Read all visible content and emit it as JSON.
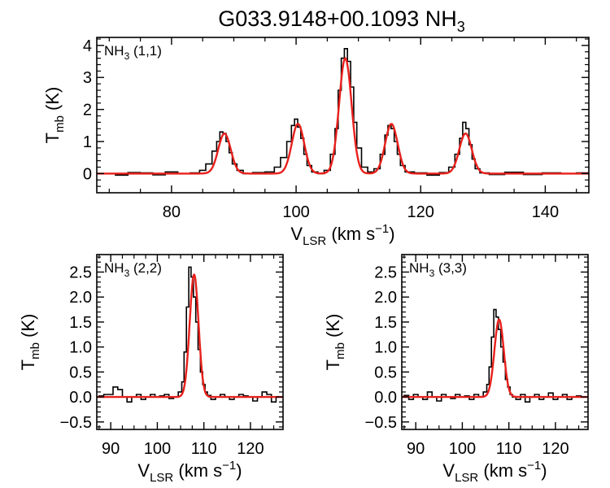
{
  "figure": {
    "title": "G033.9148+00.1093 NH",
    "title_sub": "3"
  },
  "chart_data": [
    {
      "type": "line",
      "panel_label": {
        "main": "NH",
        "sub": "3",
        "rest": " (1,1)"
      },
      "xlabel": {
        "main": "V",
        "sub": "LSR",
        "rest": " (km s",
        "sup": "−1",
        "end": ")"
      },
      "ylabel": {
        "main": "T",
        "sub": "mb",
        "rest": " (K)"
      },
      "xlim": [
        68,
        147
      ],
      "ylim": [
        -0.6,
        4.25
      ],
      "xticks": [
        80,
        100,
        120,
        140
      ],
      "xtick_labels": [
        "80",
        "100",
        "120",
        "140"
      ],
      "yticks": [
        0,
        1,
        2,
        3,
        4
      ],
      "ytick_labels": [
        "0",
        "1",
        "2",
        "3",
        "4"
      ],
      "series": [
        {
          "role": "spectrum",
          "style": "step",
          "color": "#000000",
          "x": [
            70,
            72,
            74,
            76,
            78,
            80,
            82,
            84,
            85,
            86,
            87,
            87.5,
            88,
            88.5,
            89,
            89.5,
            90,
            91,
            92,
            94,
            96,
            97,
            98,
            99,
            99.5,
            100,
            100.5,
            101,
            101.5,
            102,
            103,
            104,
            105,
            106,
            106.5,
            107,
            107.5,
            108,
            108.5,
            109,
            109.5,
            110,
            111,
            112,
            113,
            114,
            114.5,
            115,
            115.5,
            116,
            116.5,
            117,
            118,
            120,
            122,
            124,
            125,
            126,
            126.5,
            127,
            127.5,
            128,
            128.5,
            129,
            130,
            132,
            135,
            138,
            141,
            144,
            146
          ],
          "y": [
            0.0,
            -0.05,
            0.03,
            0.02,
            -0.04,
            0.05,
            0.0,
            0.02,
            0.1,
            0.3,
            0.7,
            1.0,
            1.3,
            1.25,
            1.0,
            0.65,
            0.3,
            0.1,
            0.0,
            0.03,
            0.05,
            0.2,
            0.5,
            1.0,
            1.5,
            1.7,
            1.45,
            1.1,
            0.6,
            0.25,
            0.05,
            0.0,
            0.1,
            0.6,
            1.4,
            2.6,
            3.6,
            3.9,
            3.5,
            2.7,
            1.6,
            0.8,
            0.2,
            0.05,
            0.15,
            0.6,
            1.2,
            1.5,
            1.4,
            1.0,
            0.6,
            0.25,
            0.05,
            0.02,
            -0.05,
            0.03,
            0.2,
            0.6,
            1.1,
            1.6,
            1.4,
            0.9,
            0.45,
            0.15,
            0.02,
            -0.03,
            0.04,
            -0.03,
            0.02,
            0.0,
            0.02
          ]
        },
        {
          "role": "fit",
          "style": "gaussians",
          "color": "#e8201c",
          "components": [
            {
              "center": 88.5,
              "amplitude": 1.25,
              "sigma": 1.0
            },
            {
              "center": 100.3,
              "amplitude": 1.55,
              "sigma": 1.0
            },
            {
              "center": 107.9,
              "amplitude": 3.6,
              "sigma": 1.0
            },
            {
              "center": 115.3,
              "amplitude": 1.55,
              "sigma": 1.0
            },
            {
              "center": 127.2,
              "amplitude": 1.25,
              "sigma": 1.0
            }
          ]
        }
      ]
    },
    {
      "type": "line",
      "panel_label": {
        "main": "NH",
        "sub": "3",
        "rest": " (2,2)"
      },
      "xlabel": {
        "main": "V",
        "sub": "LSR",
        "rest": " (km s",
        "sup": "−1",
        "end": ")"
      },
      "ylabel": {
        "main": "T",
        "sub": "mb",
        "rest": " (K)"
      },
      "xlim": [
        87,
        127
      ],
      "ylim": [
        -0.65,
        2.85
      ],
      "xticks": [
        90,
        100,
        110,
        120
      ],
      "xtick_labels": [
        "90",
        "100",
        "110",
        "120"
      ],
      "yticks": [
        -0.5,
        0,
        0.5,
        1.0,
        1.5,
        2.0,
        2.5
      ],
      "ytick_labels": [
        "−0.5",
        "0.0",
        "0.5",
        "1.0",
        "1.5",
        "2.0",
        "2.5"
      ],
      "series": [
        {
          "role": "spectrum",
          "style": "step",
          "color": "#000000",
          "x": [
            87,
            88,
            89,
            90,
            91,
            92,
            93,
            94,
            95,
            96,
            97,
            98,
            99,
            100,
            101,
            102,
            103,
            104,
            105,
            105.5,
            106,
            106.5,
            107,
            107.5,
            108,
            108.5,
            109,
            109.5,
            110,
            110.5,
            111,
            112,
            113,
            114,
            115,
            116,
            117,
            118,
            119,
            120,
            121,
            122,
            123,
            124,
            125,
            126
          ],
          "y": [
            0.0,
            0.02,
            0.05,
            0.05,
            0.2,
            0.15,
            0.0,
            -0.1,
            0.0,
            0.05,
            -0.05,
            0.0,
            0.05,
            0.0,
            0.02,
            0.05,
            -0.03,
            0.0,
            0.1,
            0.3,
            0.9,
            1.8,
            2.6,
            2.4,
            2.0,
            1.5,
            0.95,
            0.5,
            0.25,
            0.1,
            0.03,
            -0.05,
            0.0,
            0.05,
            0.0,
            -0.05,
            0.0,
            0.05,
            0.02,
            0.0,
            -0.08,
            0.0,
            0.1,
            0.05,
            -0.1,
            0.0
          ]
        },
        {
          "role": "fit",
          "style": "gaussians",
          "color": "#e8201c",
          "components": [
            {
              "center": 107.9,
              "amplitude": 2.45,
              "sigma": 0.95
            }
          ]
        }
      ]
    },
    {
      "type": "line",
      "panel_label": {
        "main": "NH",
        "sub": "3",
        "rest": " (3,3)"
      },
      "xlabel": {
        "main": "V",
        "sub": "LSR",
        "rest": " (km s",
        "sup": "−1",
        "end": ")"
      },
      "ylabel": {
        "main": "T",
        "sub": "mb",
        "rest": " (K)"
      },
      "xlim": [
        87,
        127
      ],
      "ylim": [
        -0.65,
        2.85
      ],
      "xticks": [
        90,
        100,
        110,
        120
      ],
      "xtick_labels": [
        "90",
        "100",
        "110",
        "120"
      ],
      "yticks": [
        -0.5,
        0,
        0.5,
        1.0,
        1.5,
        2.0,
        2.5
      ],
      "ytick_labels": [
        "−0.5",
        "0.0",
        "0.5",
        "1.0",
        "1.5",
        "2.0",
        "2.5"
      ],
      "series": [
        {
          "role": "spectrum",
          "style": "step",
          "color": "#000000",
          "x": [
            87,
            88,
            89,
            90,
            91,
            92,
            93,
            94,
            95,
            96,
            97,
            98,
            99,
            100,
            101,
            102,
            103,
            104,
            105,
            105.5,
            106,
            106.5,
            107,
            107.5,
            108,
            108.5,
            109,
            109.5,
            110,
            110.5,
            111,
            112,
            113,
            114,
            115,
            116,
            117,
            118,
            119,
            120,
            121,
            122,
            123,
            124,
            125,
            126
          ],
          "y": [
            0.0,
            0.03,
            -0.05,
            0.05,
            0.0,
            -0.05,
            0.1,
            0.0,
            -0.08,
            0.05,
            0.0,
            -0.03,
            0.05,
            0.0,
            0.02,
            -0.05,
            0.05,
            0.0,
            0.1,
            0.25,
            0.6,
            1.2,
            1.75,
            1.6,
            1.35,
            1.0,
            0.7,
            0.35,
            0.2,
            0.05,
            0.0,
            -0.05,
            0.05,
            -0.1,
            0.0,
            0.05,
            -0.05,
            0.0,
            0.08,
            -0.05,
            0.0,
            0.05,
            -0.05,
            0.0,
            0.02,
            0.0
          ]
        },
        {
          "role": "fit",
          "style": "gaussians",
          "color": "#e8201c",
          "components": [
            {
              "center": 107.9,
              "amplitude": 1.55,
              "sigma": 1.0
            }
          ]
        }
      ]
    }
  ]
}
